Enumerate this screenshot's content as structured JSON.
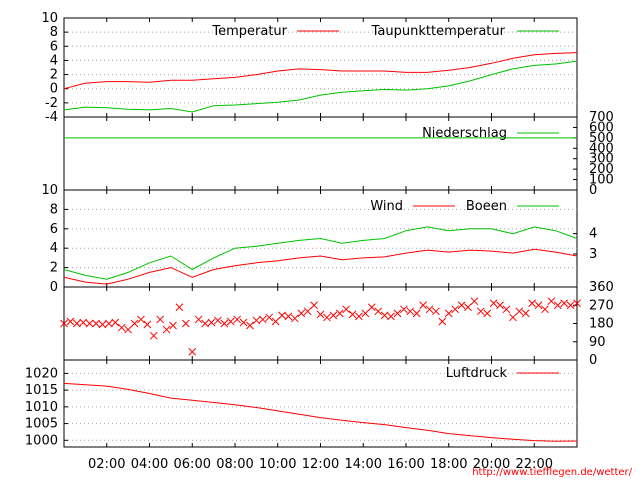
{
  "footer": {
    "url": "http://www.tiefflegen.de/wetter/"
  },
  "x_axis": {
    "ticks": [
      "02:00",
      "04:00",
      "06:00",
      "08:00",
      "10:00",
      "12:00",
      "14:00",
      "16:00",
      "18:00",
      "20:00",
      "22:00"
    ],
    "range": [
      0,
      24
    ]
  },
  "colors": {
    "red": "#ff0000",
    "green": "#00c000",
    "black": "#000000"
  },
  "chart_data": [
    {
      "id": "temperature",
      "type": "line",
      "ylim": [
        -4,
        10
      ],
      "yticks": [
        10,
        8,
        6,
        4,
        2,
        0,
        -2,
        -4
      ],
      "series": [
        {
          "name": "Temperatur",
          "color": "#ff0000",
          "x": [
            0,
            1,
            2,
            3,
            4,
            5,
            6,
            7,
            8,
            9,
            10,
            11,
            12,
            13,
            14,
            15,
            16,
            17,
            18,
            19,
            20,
            21,
            22,
            23,
            24
          ],
          "y": [
            0.0,
            0.8,
            1.0,
            1.0,
            0.9,
            1.2,
            1.2,
            1.4,
            1.6,
            2.0,
            2.5,
            2.8,
            2.7,
            2.5,
            2.5,
            2.5,
            2.3,
            2.3,
            2.6,
            3.0,
            3.6,
            4.3,
            4.8,
            5.0,
            5.1
          ]
        },
        {
          "name": "Taupunkttemperatur",
          "color": "#00c000",
          "x": [
            0,
            1,
            2,
            3,
            4,
            5,
            6,
            7,
            8,
            9,
            10,
            11,
            12,
            13,
            14,
            15,
            16,
            17,
            18,
            19,
            20,
            21,
            22,
            23,
            24
          ],
          "y": [
            -3.0,
            -2.6,
            -2.7,
            -2.9,
            -3.0,
            -2.8,
            -3.3,
            -2.4,
            -2.3,
            -2.1,
            -1.9,
            -1.6,
            -0.9,
            -0.5,
            -0.3,
            -0.1,
            -0.2,
            0.0,
            0.4,
            1.1,
            2.0,
            2.8,
            3.3,
            3.5,
            3.9
          ]
        }
      ]
    },
    {
      "id": "precipitation",
      "type": "line",
      "ylim": [
        0,
        700
      ],
      "yticks_right": [
        700,
        600,
        500,
        400,
        300,
        200,
        100,
        0
      ],
      "series": [
        {
          "name": "Niederschlag",
          "color": "#00c000",
          "x": [
            0,
            24
          ],
          "y": [
            500,
            500
          ]
        }
      ]
    },
    {
      "id": "wind",
      "type": "line",
      "ylim": [
        0,
        10
      ],
      "yticks": [
        10,
        8,
        6,
        4,
        2,
        0
      ],
      "yticks_right": [
        4,
        3
      ],
      "series": [
        {
          "name": "Wind",
          "color": "#ff0000",
          "x": [
            0,
            1,
            2,
            3,
            4,
            5,
            6,
            7,
            8,
            9,
            10,
            11,
            12,
            13,
            14,
            15,
            16,
            17,
            18,
            19,
            20,
            21,
            22,
            23,
            24
          ],
          "y": [
            1.0,
            0.5,
            0.3,
            0.8,
            1.5,
            2.0,
            1.0,
            1.8,
            2.2,
            2.5,
            2.7,
            3.0,
            3.2,
            2.8,
            3.0,
            3.1,
            3.5,
            3.8,
            3.6,
            3.8,
            3.7,
            3.5,
            3.9,
            3.6,
            3.2
          ]
        },
        {
          "name": "Boeen",
          "color": "#00c000",
          "x": [
            0,
            1,
            2,
            3,
            4,
            5,
            6,
            7,
            8,
            9,
            10,
            11,
            12,
            13,
            14,
            15,
            16,
            17,
            18,
            19,
            20,
            21,
            22,
            23,
            24
          ],
          "y": [
            1.8,
            1.2,
            0.8,
            1.5,
            2.5,
            3.2,
            1.8,
            3.0,
            4.0,
            4.2,
            4.5,
            4.8,
            5.0,
            4.5,
            4.8,
            5.0,
            5.8,
            6.2,
            5.8,
            6.0,
            6.0,
            5.5,
            6.2,
            5.8,
            5.0
          ]
        }
      ]
    },
    {
      "id": "wind_direction",
      "type": "scatter",
      "ylim": [
        0,
        360
      ],
      "yticks_right": [
        360,
        270,
        180,
        90,
        0
      ],
      "series": [
        {
          "name": "",
          "color": "#ff0000",
          "x": [
            0.0,
            0.3,
            0.6,
            0.9,
            1.2,
            1.5,
            1.8,
            2.1,
            2.4,
            2.7,
            3.0,
            3.3,
            3.6,
            3.9,
            4.2,
            4.5,
            4.8,
            5.1,
            5.4,
            5.7,
            6.0,
            6.3,
            6.6,
            6.9,
            7.2,
            7.5,
            7.8,
            8.1,
            8.4,
            8.7,
            9.0,
            9.3,
            9.6,
            9.9,
            10.2,
            10.5,
            10.8,
            11.1,
            11.4,
            11.7,
            12.0,
            12.3,
            12.6,
            12.9,
            13.2,
            13.5,
            13.8,
            14.1,
            14.4,
            14.7,
            15.0,
            15.3,
            15.6,
            15.9,
            16.2,
            16.5,
            16.8,
            17.1,
            17.4,
            17.7,
            18.0,
            18.3,
            18.6,
            18.9,
            19.2,
            19.5,
            19.8,
            20.1,
            20.4,
            20.7,
            21.0,
            21.3,
            21.6,
            21.9,
            22.2,
            22.5,
            22.8,
            23.1,
            23.4,
            23.7,
            24.0
          ],
          "y": [
            180,
            190,
            180,
            185,
            180,
            180,
            175,
            180,
            185,
            160,
            150,
            180,
            200,
            175,
            120,
            200,
            150,
            170,
            260,
            180,
            40,
            200,
            180,
            185,
            195,
            180,
            190,
            200,
            185,
            170,
            195,
            200,
            210,
            190,
            220,
            215,
            205,
            230,
            240,
            270,
            225,
            210,
            220,
            230,
            250,
            225,
            215,
            230,
            260,
            240,
            220,
            215,
            230,
            250,
            240,
            230,
            270,
            250,
            240,
            190,
            230,
            250,
            270,
            260,
            290,
            240,
            230,
            280,
            270,
            250,
            210,
            240,
            230,
            280,
            270,
            250,
            290,
            270,
            280,
            270,
            280
          ]
        }
      ]
    },
    {
      "id": "pressure",
      "type": "line",
      "ylim": [
        998,
        1024
      ],
      "yticks": [
        1020,
        1015,
        1010,
        1005,
        1000
      ],
      "series": [
        {
          "name": "Luftdruck",
          "color": "#ff0000",
          "x": [
            0,
            1,
            2,
            3,
            4,
            5,
            6,
            7,
            8,
            9,
            10,
            11,
            12,
            13,
            14,
            15,
            16,
            17,
            18,
            19,
            20,
            21,
            22,
            23,
            24
          ],
          "y": [
            1017.0,
            1016.6,
            1016.2,
            1015.2,
            1014.0,
            1012.6,
            1012.0,
            1011.3,
            1010.6,
            1009.8,
            1008.8,
            1007.8,
            1006.8,
            1006.0,
            1005.3,
            1004.7,
            1003.8,
            1003.0,
            1002.0,
            1001.4,
            1000.8,
            1000.3,
            999.9,
            999.7,
            999.8
          ]
        }
      ]
    }
  ]
}
